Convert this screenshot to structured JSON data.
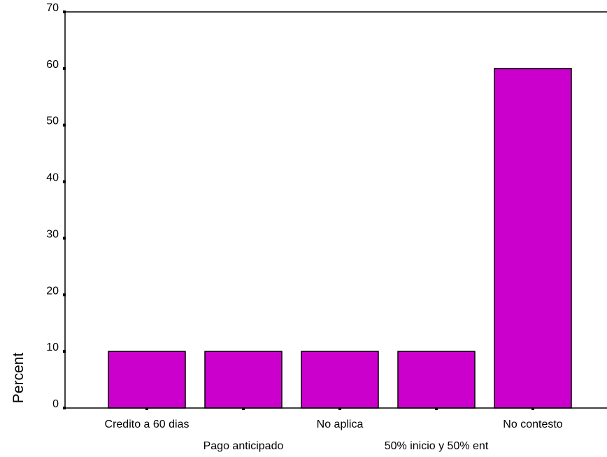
{
  "chart_data": {
    "type": "bar",
    "title": "",
    "xlabel": "",
    "ylabel": "Percent",
    "ylim": [
      0,
      70
    ],
    "yticks": [
      0,
      10,
      20,
      30,
      40,
      50,
      60,
      70
    ],
    "categories": [
      "Credito a 60 dias",
      "Pago anticipado",
      "No aplica",
      "50% inicio y 50% ent",
      "No contesto"
    ],
    "values": [
      10,
      10,
      10,
      10,
      60
    ],
    "bar_color": "#cc00cc",
    "grid": false,
    "legend": "none"
  }
}
